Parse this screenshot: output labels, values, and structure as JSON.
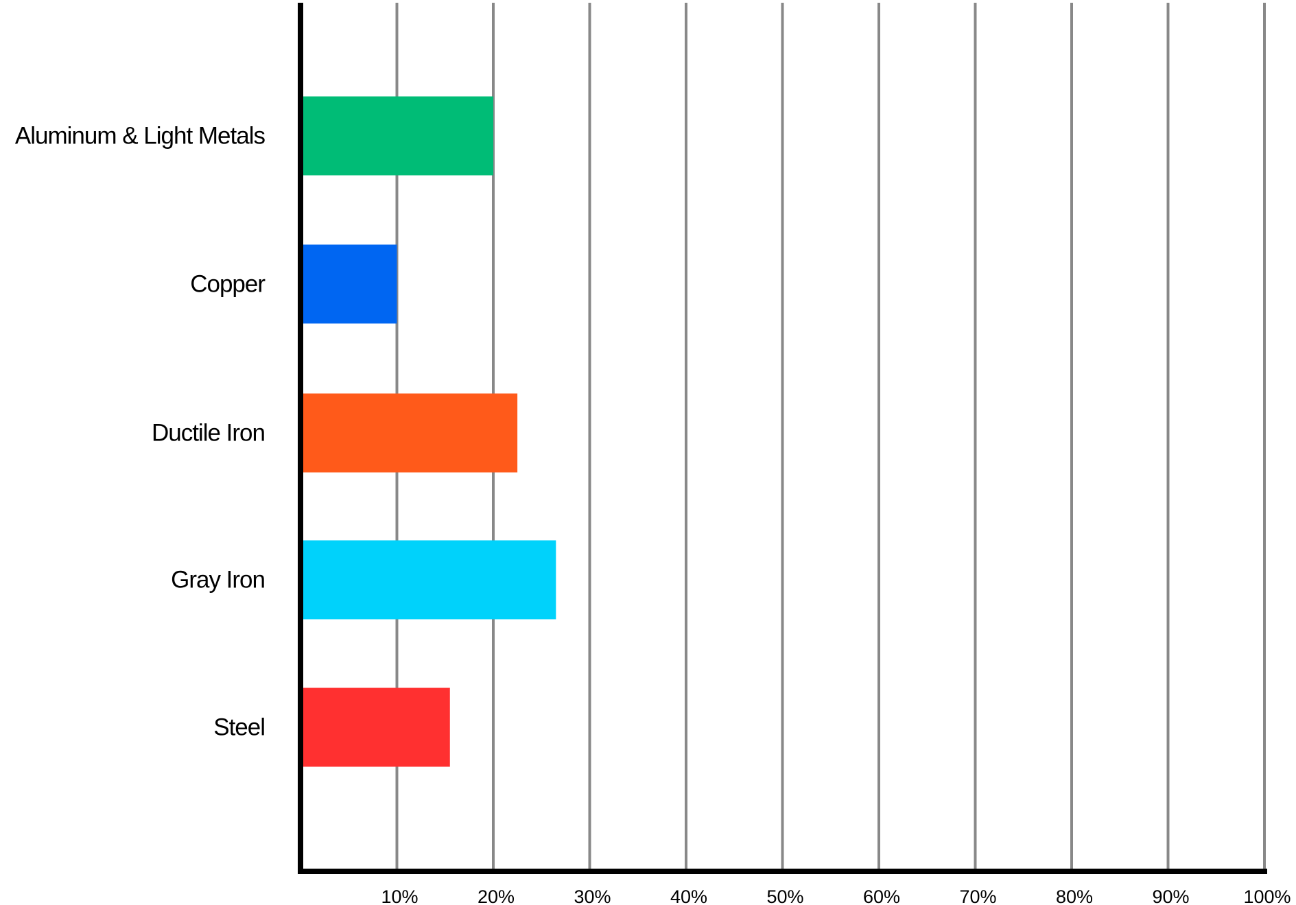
{
  "chart_data": {
    "type": "bar",
    "orientation": "horizontal",
    "categories": [
      "Aluminum & Light Metals",
      "Copper",
      "Ductile Iron",
      "Gray Iron",
      "Steel"
    ],
    "values": [
      20,
      10,
      22.5,
      26.5,
      15.5
    ],
    "colors": [
      "#00BC76",
      "#0066F2",
      "#FF5A1A",
      "#00D2FB",
      "#FF3030"
    ],
    "x_ticks": [
      "10%",
      "20%",
      "30%",
      "40%",
      "50%",
      "60%",
      "70%",
      "80%",
      "90%",
      "100%"
    ],
    "xlim": [
      0,
      100
    ],
    "grid": true,
    "gridline_color": "#888888",
    "axis_color": "#000000",
    "legend": "none"
  }
}
